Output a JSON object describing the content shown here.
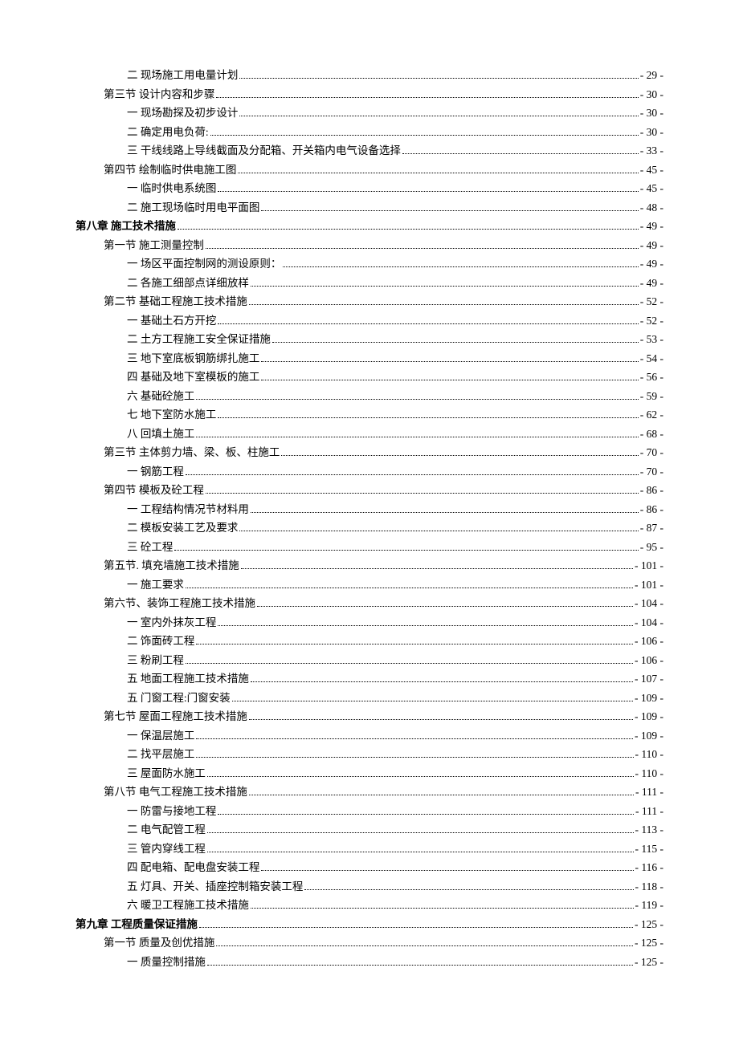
{
  "toc": [
    {
      "level": 2,
      "label": "二 现场施工用电量计划",
      "page": "- 29 -"
    },
    {
      "level": 1,
      "label": "第三节 设计内容和步骤",
      "page": "- 30 -"
    },
    {
      "level": 2,
      "label": "一 现场勘探及初步设计",
      "page": "- 30 -"
    },
    {
      "level": 2,
      "label": "二 确定用电负荷:",
      "page": "- 30 -"
    },
    {
      "level": 2,
      "label": "三 干线线路上导线截面及分配箱、开关箱内电气设备选择",
      "page": "- 33 -"
    },
    {
      "level": 1,
      "label": "第四节 绘制临时供电施工图",
      "page": "- 45 -"
    },
    {
      "level": 2,
      "label": "一 临时供电系统图",
      "page": "- 45 -"
    },
    {
      "level": 2,
      "label": "二 施工现场临时用电平面图",
      "page": "- 48 -"
    },
    {
      "level": 0,
      "label": "第八章  施工技术措施",
      "page": "- 49 -"
    },
    {
      "level": 1,
      "label": "第一节 施工测量控制",
      "page": "- 49 -"
    },
    {
      "level": 2,
      "label": "一 场区平面控制网的测设原则：",
      "page": "- 49 -"
    },
    {
      "level": 2,
      "label": "二 各施工细部点详细放样",
      "page": "- 49 -"
    },
    {
      "level": 1,
      "label": "第二节 基础工程施工技术措施",
      "page": "- 52 -"
    },
    {
      "level": 2,
      "label": "一 基础土石方开挖",
      "page": "- 52 -"
    },
    {
      "level": 2,
      "label": "二 土方工程施工安全保证措施",
      "page": "- 53 -"
    },
    {
      "level": 2,
      "label": "三 地下室底板钢筋绑扎施工",
      "page": "- 54 -"
    },
    {
      "level": 2,
      "label": "四 基础及地下室模板的施工",
      "page": "- 56 -"
    },
    {
      "level": 2,
      "label": "六 基础砼施工",
      "page": "- 59 -"
    },
    {
      "level": 2,
      "label": "七 地下室防水施工",
      "page": "- 62 -"
    },
    {
      "level": 2,
      "label": "八 回填土施工",
      "page": "- 68 -"
    },
    {
      "level": 1,
      "label": "第三节 主体剪力墙、梁、板、柱施工",
      "page": "- 70 -"
    },
    {
      "level": 2,
      "label": "一 钢筋工程",
      "page": "- 70 -"
    },
    {
      "level": 1,
      "label": "第四节 模板及砼工程",
      "page": "- 86 -"
    },
    {
      "level": 2,
      "label": "一 工程结构情况节材料用",
      "page": "- 86 -"
    },
    {
      "level": 2,
      "label": "二 模板安装工艺及要求",
      "page": "- 87 -"
    },
    {
      "level": 2,
      "label": "三 砼工程",
      "page": "- 95 -"
    },
    {
      "level": 1,
      "label": "第五节. 填充墙施工技术措施",
      "page": "- 101 -"
    },
    {
      "level": 2,
      "label": "一 施工要求",
      "page": "- 101 -"
    },
    {
      "level": 1,
      "label": "第六节、装饰工程施工技术措施",
      "page": "- 104 -"
    },
    {
      "level": 2,
      "label": "一 室内外抹灰工程",
      "page": "- 104 -"
    },
    {
      "level": 2,
      "label": "二 饰面砖工程",
      "page": "- 106 -"
    },
    {
      "level": 2,
      "label": "三 粉刷工程",
      "page": "- 106 -"
    },
    {
      "level": 2,
      "label": "五 地面工程施工技术措施",
      "page": "- 107 -"
    },
    {
      "level": 2,
      "label": "五 门窗工程:门窗安装",
      "page": "- 109 -"
    },
    {
      "level": 1,
      "label": "第七节 屋面工程施工技术措施",
      "page": "- 109 -"
    },
    {
      "level": 2,
      "label": "一 保温层施工",
      "page": "- 109 -"
    },
    {
      "level": 2,
      "label": "二 找平层施工",
      "page": "- 110 -"
    },
    {
      "level": 2,
      "label": "三 屋面防水施工",
      "page": "- 110 -"
    },
    {
      "level": 1,
      "label": "第八节 电气工程施工技术措施",
      "page": "- 111 -"
    },
    {
      "level": 2,
      "label": "一 防雷与接地工程",
      "page": "- 111 -"
    },
    {
      "level": 2,
      "label": "二 电气配管工程",
      "page": "- 113 -"
    },
    {
      "level": 2,
      "label": "三 管内穿线工程",
      "page": "- 115 -"
    },
    {
      "level": 2,
      "label": "四 配电箱、配电盘安装工程",
      "page": "- 116 -"
    },
    {
      "level": 2,
      "label": "五 灯具、开关、插座控制箱安装工程",
      "page": "- 118 -"
    },
    {
      "level": 2,
      "label": "六 暖卫工程施工技术措施",
      "page": "- 119 -"
    },
    {
      "level": 0,
      "label": "第九章  工程质量保证措施",
      "page": "- 125 -"
    },
    {
      "level": 1,
      "label": "第一节 质量及创优措施",
      "page": "- 125 -"
    },
    {
      "level": 2,
      "label": "一 质量控制措施",
      "page": "- 125 -"
    }
  ]
}
